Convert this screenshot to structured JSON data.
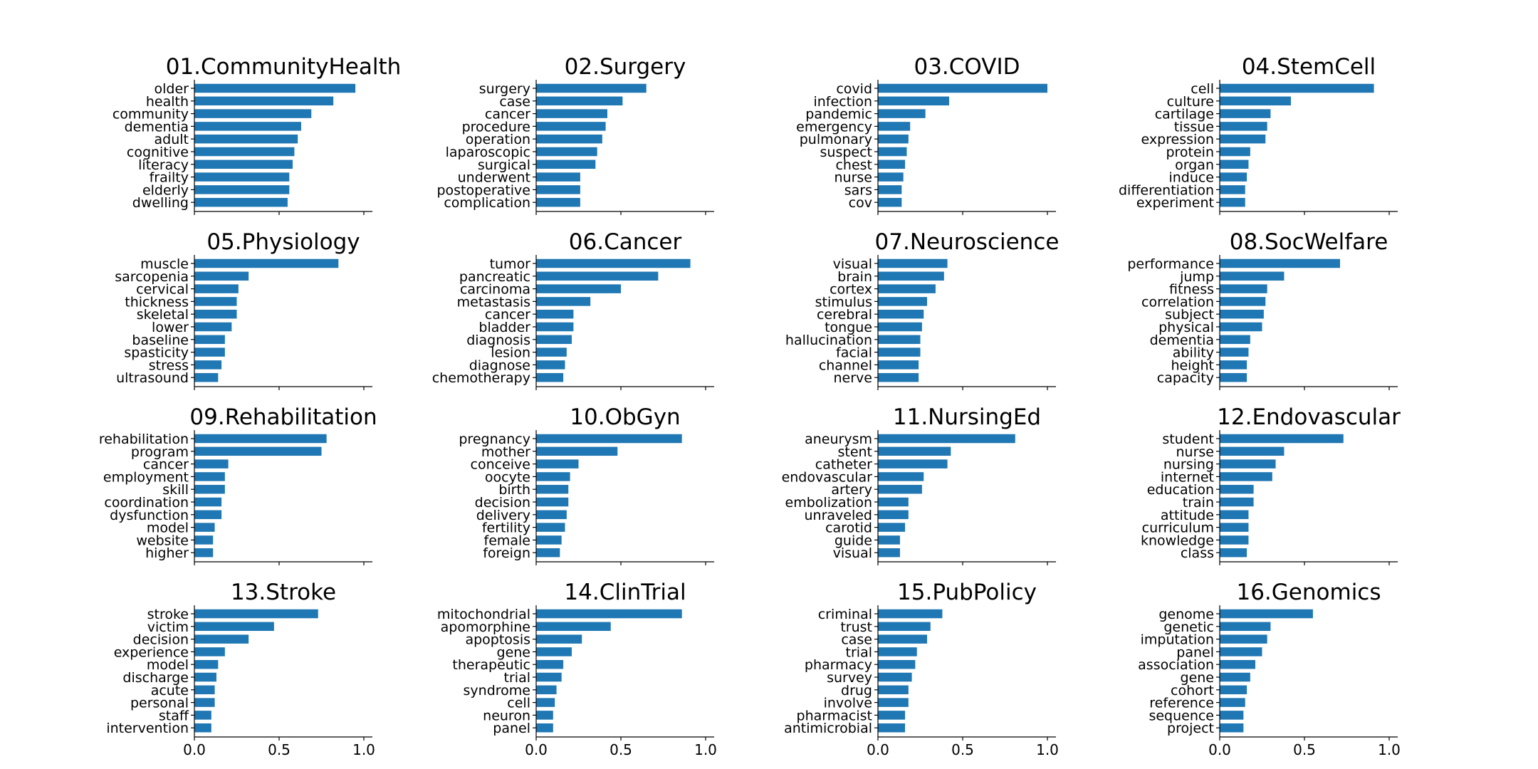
{
  "colors": {
    "bar": "#1f77b4",
    "axis": "#000000",
    "background": "#ffffff"
  },
  "chart_data": [
    {
      "type": "bar",
      "orientation": "horizontal",
      "title": "01.CommunityHealth",
      "xlim": [
        0,
        1.05
      ],
      "xticks": [
        "0.0",
        "0.5",
        "1.0"
      ],
      "show_tick_labels": false,
      "categories": [
        "older",
        "health",
        "community",
        "dementia",
        "adult",
        "cognitive",
        "literacy",
        "frailty",
        "elderly",
        "dwelling"
      ],
      "values": [
        0.95,
        0.82,
        0.69,
        0.63,
        0.61,
        0.59,
        0.58,
        0.56,
        0.56,
        0.55
      ]
    },
    {
      "type": "bar",
      "orientation": "horizontal",
      "title": "02.Surgery",
      "xlim": [
        0,
        1.05
      ],
      "xticks": [
        "0.0",
        "0.5",
        "1.0"
      ],
      "show_tick_labels": false,
      "categories": [
        "surgery",
        "case",
        "cancer",
        "procedure",
        "operation",
        "laparoscopic",
        "surgical",
        "underwent",
        "postoperative",
        "complication"
      ],
      "values": [
        0.65,
        0.51,
        0.42,
        0.41,
        0.39,
        0.36,
        0.35,
        0.26,
        0.26,
        0.26
      ]
    },
    {
      "type": "bar",
      "orientation": "horizontal",
      "title": "03.COVID",
      "xlim": [
        0,
        1.05
      ],
      "xticks": [
        "0.0",
        "0.5",
        "1.0"
      ],
      "show_tick_labels": false,
      "categories": [
        "covid",
        "infection",
        "pandemic",
        "emergency",
        "pulmonary",
        "suspect",
        "chest",
        "nurse",
        "sars",
        "cov"
      ],
      "values": [
        1.0,
        0.42,
        0.28,
        0.19,
        0.18,
        0.17,
        0.16,
        0.15,
        0.14,
        0.14
      ]
    },
    {
      "type": "bar",
      "orientation": "horizontal",
      "title": "04.StemCell",
      "xlim": [
        0,
        1.05
      ],
      "xticks": [
        "0.0",
        "0.5",
        "1.0"
      ],
      "show_tick_labels": false,
      "categories": [
        "cell",
        "culture",
        "cartilage",
        "tissue",
        "expression",
        "protein",
        "organ",
        "induce",
        "differentiation",
        "experiment"
      ],
      "values": [
        0.91,
        0.42,
        0.3,
        0.28,
        0.27,
        0.18,
        0.17,
        0.16,
        0.15,
        0.15
      ]
    },
    {
      "type": "bar",
      "orientation": "horizontal",
      "title": "05.Physiology",
      "xlim": [
        0,
        1.05
      ],
      "xticks": [
        "0.0",
        "0.5",
        "1.0"
      ],
      "show_tick_labels": false,
      "categories": [
        "muscle",
        "sarcopenia",
        "cervical",
        "thickness",
        "skeletal",
        "lower",
        "baseline",
        "spasticity",
        "stress",
        "ultrasound"
      ],
      "values": [
        0.85,
        0.32,
        0.26,
        0.25,
        0.25,
        0.22,
        0.18,
        0.18,
        0.16,
        0.14
      ]
    },
    {
      "type": "bar",
      "orientation": "horizontal",
      "title": "06.Cancer",
      "xlim": [
        0,
        1.05
      ],
      "xticks": [
        "0.0",
        "0.5",
        "1.0"
      ],
      "show_tick_labels": false,
      "categories": [
        "tumor",
        "pancreatic",
        "carcinoma",
        "metastasis",
        "cancer",
        "bladder",
        "diagnosis",
        "lesion",
        "diagnose",
        "chemotherapy"
      ],
      "values": [
        0.91,
        0.72,
        0.5,
        0.32,
        0.22,
        0.22,
        0.21,
        0.18,
        0.17,
        0.16
      ]
    },
    {
      "type": "bar",
      "orientation": "horizontal",
      "title": "07.Neuroscience",
      "xlim": [
        0,
        1.05
      ],
      "xticks": [
        "0.0",
        "0.5",
        "1.0"
      ],
      "show_tick_labels": false,
      "categories": [
        "visual",
        "brain",
        "cortex",
        "stimulus",
        "cerebral",
        "tongue",
        "hallucination",
        "facial",
        "channel",
        "nerve"
      ],
      "values": [
        0.41,
        0.39,
        0.34,
        0.29,
        0.27,
        0.26,
        0.25,
        0.25,
        0.24,
        0.24
      ]
    },
    {
      "type": "bar",
      "orientation": "horizontal",
      "title": "08.SocWelfare",
      "xlim": [
        0,
        1.05
      ],
      "xticks": [
        "0.0",
        "0.5",
        "1.0"
      ],
      "show_tick_labels": false,
      "categories": [
        "performance",
        "jump",
        "fitness",
        "correlation",
        "subject",
        "physical",
        "dementia",
        "ability",
        "height",
        "capacity"
      ],
      "values": [
        0.71,
        0.38,
        0.28,
        0.27,
        0.26,
        0.25,
        0.18,
        0.17,
        0.16,
        0.16
      ]
    },
    {
      "type": "bar",
      "orientation": "horizontal",
      "title": "09.Rehabilitation",
      "xlim": [
        0,
        1.05
      ],
      "xticks": [
        "0.0",
        "0.5",
        "1.0"
      ],
      "show_tick_labels": false,
      "categories": [
        "rehabilitation",
        "program",
        "cancer",
        "employment",
        "skill",
        "coordination",
        "dysfunction",
        "model",
        "website",
        "higher"
      ],
      "values": [
        0.78,
        0.75,
        0.2,
        0.18,
        0.18,
        0.16,
        0.16,
        0.12,
        0.11,
        0.11
      ]
    },
    {
      "type": "bar",
      "orientation": "horizontal",
      "title": "10.ObGyn",
      "xlim": [
        0,
        1.05
      ],
      "xticks": [
        "0.0",
        "0.5",
        "1.0"
      ],
      "show_tick_labels": false,
      "categories": [
        "pregnancy",
        "mother",
        "conceive",
        "oocyte",
        "birth",
        "decision",
        "delivery",
        "fertility",
        "female",
        "foreign"
      ],
      "values": [
        0.86,
        0.48,
        0.25,
        0.2,
        0.19,
        0.19,
        0.18,
        0.17,
        0.15,
        0.14
      ]
    },
    {
      "type": "bar",
      "orientation": "horizontal",
      "title": "11.NursingEd",
      "xlim": [
        0,
        1.05
      ],
      "xticks": [
        "0.0",
        "0.5",
        "1.0"
      ],
      "show_tick_labels": false,
      "categories": [
        "aneurysm",
        "stent",
        "catheter",
        "endovascular",
        "artery",
        "embolization",
        "unraveled",
        "carotid",
        "guide",
        "visual"
      ],
      "values": [
        0.81,
        0.43,
        0.41,
        0.27,
        0.26,
        0.18,
        0.18,
        0.16,
        0.13,
        0.13
      ]
    },
    {
      "type": "bar",
      "orientation": "horizontal",
      "title": "12.Endovascular",
      "xlim": [
        0,
        1.05
      ],
      "xticks": [
        "0.0",
        "0.5",
        "1.0"
      ],
      "show_tick_labels": false,
      "categories": [
        "student",
        "nurse",
        "nursing",
        "internet",
        "education",
        "train",
        "attitude",
        "curriculum",
        "knowledge",
        "class"
      ],
      "values": [
        0.73,
        0.38,
        0.33,
        0.31,
        0.2,
        0.2,
        0.17,
        0.17,
        0.17,
        0.16
      ]
    },
    {
      "type": "bar",
      "orientation": "horizontal",
      "title": "13.Stroke",
      "xlim": [
        0,
        1.05
      ],
      "xticks": [
        "0.0",
        "0.5",
        "1.0"
      ],
      "show_tick_labels": true,
      "categories": [
        "stroke",
        "victim",
        "decision",
        "experience",
        "model",
        "discharge",
        "acute",
        "personal",
        "staff",
        "intervention"
      ],
      "values": [
        0.73,
        0.47,
        0.32,
        0.18,
        0.14,
        0.13,
        0.12,
        0.12,
        0.1,
        0.1
      ]
    },
    {
      "type": "bar",
      "orientation": "horizontal",
      "title": "14.ClinTrial",
      "xlim": [
        0,
        1.05
      ],
      "xticks": [
        "0.0",
        "0.5",
        "1.0"
      ],
      "show_tick_labels": true,
      "categories": [
        "mitochondrial",
        "apomorphine",
        "apoptosis",
        "gene",
        "therapeutic",
        "trial",
        "syndrome",
        "cell",
        "neuron",
        "panel"
      ],
      "values": [
        0.86,
        0.44,
        0.27,
        0.21,
        0.16,
        0.15,
        0.12,
        0.11,
        0.1,
        0.1
      ]
    },
    {
      "type": "bar",
      "orientation": "horizontal",
      "title": "15.PubPolicy",
      "xlim": [
        0,
        1.05
      ],
      "xticks": [
        "0.0",
        "0.5",
        "1.0"
      ],
      "show_tick_labels": true,
      "categories": [
        "criminal",
        "trust",
        "case",
        "trial",
        "pharmacy",
        "survey",
        "drug",
        "involve",
        "pharmacist",
        "antimicrobial"
      ],
      "values": [
        0.38,
        0.31,
        0.29,
        0.23,
        0.22,
        0.2,
        0.18,
        0.18,
        0.16,
        0.16
      ]
    },
    {
      "type": "bar",
      "orientation": "horizontal",
      "title": "16.Genomics",
      "xlim": [
        0,
        1.05
      ],
      "xticks": [
        "0.0",
        "0.5",
        "1.0"
      ],
      "show_tick_labels": true,
      "categories": [
        "genome",
        "genetic",
        "imputation",
        "panel",
        "association",
        "gene",
        "cohort",
        "reference",
        "sequence",
        "project"
      ],
      "values": [
        0.55,
        0.3,
        0.28,
        0.25,
        0.21,
        0.18,
        0.16,
        0.15,
        0.14,
        0.14
      ]
    }
  ]
}
